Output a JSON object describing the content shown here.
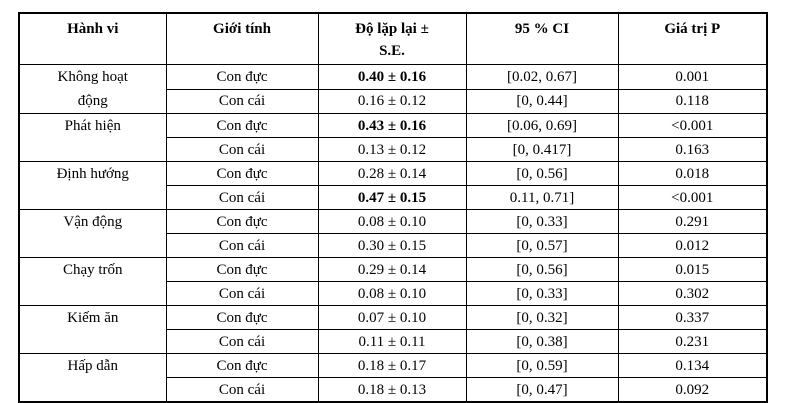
{
  "table": {
    "headers": [
      "Hành vi",
      "Giới tính",
      "Độ lặp lại ± S.E.",
      "95 % CI",
      "Giá trị P"
    ],
    "groups": [
      {
        "behavior": "Không hoạt động",
        "rows": [
          {
            "sex": "Con đực",
            "repeatability": "0.40 ± 0.16",
            "bold": true,
            "ci": "[0.02, 0.67]",
            "p": "0.001"
          },
          {
            "sex": "Con cái",
            "repeatability": "0.16 ± 0.12",
            "bold": false,
            "ci": "[0, 0.44]",
            "p": "0.118"
          }
        ]
      },
      {
        "behavior": "Phát hiện",
        "rows": [
          {
            "sex": "Con đực",
            "repeatability": "0.43 ± 0.16",
            "bold": true,
            "ci": "[0.06, 0.69]",
            "p": "<0.001"
          },
          {
            "sex": "Con cái",
            "repeatability": "0.13 ± 0.12",
            "bold": false,
            "ci": "[0, 0.417]",
            "p": "0.163"
          }
        ]
      },
      {
        "behavior": "Định hướng",
        "rows": [
          {
            "sex": "Con đực",
            "repeatability": "0.28 ± 0.14",
            "bold": false,
            "ci": "[0, 0.56]",
            "p": "0.018"
          },
          {
            "sex": "Con cái",
            "repeatability": "0.47 ± 0.15",
            "bold": true,
            "ci": "0.11, 0.71]",
            "p": "<0.001"
          }
        ]
      },
      {
        "behavior": "Vận động",
        "rows": [
          {
            "sex": "Con đực",
            "repeatability": "0.08 ± 0.10",
            "bold": false,
            "ci": "[0, 0.33]",
            "p": "0.291"
          },
          {
            "sex": "Con cái",
            "repeatability": "0.30 ± 0.15",
            "bold": false,
            "ci": "[0, 0.57]",
            "p": "0.012"
          }
        ]
      },
      {
        "behavior": "Chạy trốn",
        "rows": [
          {
            "sex": "Con đực",
            "repeatability": "0.29 ± 0.14",
            "bold": false,
            "ci": "[0, 0.56]",
            "p": "0.015"
          },
          {
            "sex": "Con cái",
            "repeatability": "0.08 ± 0.10",
            "bold": false,
            "ci": "[0, 0.33]",
            "p": "0.302"
          }
        ]
      },
      {
        "behavior": "Kiếm ăn",
        "rows": [
          {
            "sex": "Con đực",
            "repeatability": "0.07 ± 0.10",
            "bold": false,
            "ci": "[0, 0.32]",
            "p": "0.337"
          },
          {
            "sex": "Con cái",
            "repeatability": "0.11 ± 0.11",
            "bold": false,
            "ci": "[0, 0.38]",
            "p": "0.231"
          }
        ]
      },
      {
        "behavior": "Hấp dẫn",
        "rows": [
          {
            "sex": "Con đực",
            "repeatability": "0.18 ± 0.17",
            "bold": false,
            "ci": "[0, 0.59]",
            "p": "0.134"
          },
          {
            "sex": "Con cái",
            "repeatability": "0.18 ± 0.13",
            "bold": false,
            "ci": "[0, 0.47]",
            "p": "0.092"
          }
        ]
      }
    ]
  },
  "chart_data": {
    "type": "table",
    "title": "",
    "columns": [
      "Hành vi",
      "Giới tính",
      "Độ lặp lại ± S.E.",
      "95 % CI",
      "Giá trị P"
    ],
    "rows": [
      [
        "Không hoạt động",
        "Con đực",
        "0.40 ± 0.16",
        "[0.02, 0.67]",
        "0.001"
      ],
      [
        "Không hoạt động",
        "Con cái",
        "0.16 ± 0.12",
        "[0, 0.44]",
        "0.118"
      ],
      [
        "Phát hiện",
        "Con đực",
        "0.43 ± 0.16",
        "[0.06, 0.69]",
        "<0.001"
      ],
      [
        "Phát hiện",
        "Con cái",
        "0.13 ± 0.12",
        "[0, 0.417]",
        "0.163"
      ],
      [
        "Định hướng",
        "Con đực",
        "0.28 ± 0.14",
        "[0, 0.56]",
        "0.018"
      ],
      [
        "Định hướng",
        "Con cái",
        "0.47 ± 0.15",
        "0.11, 0.71]",
        "<0.001"
      ],
      [
        "Vận động",
        "Con đực",
        "0.08 ± 0.10",
        "[0, 0.33]",
        "0.291"
      ],
      [
        "Vận động",
        "Con cái",
        "0.30 ± 0.15",
        "[0, 0.57]",
        "0.012"
      ],
      [
        "Chạy trốn",
        "Con đực",
        "0.29 ± 0.14",
        "[0, 0.56]",
        "0.015"
      ],
      [
        "Chạy trốn",
        "Con cái",
        "0.08 ± 0.10",
        "[0, 0.33]",
        "0.302"
      ],
      [
        "Kiếm ăn",
        "Con đực",
        "0.07 ± 0.10",
        "[0, 0.32]",
        "0.337"
      ],
      [
        "Kiếm ăn",
        "Con cái",
        "0.11 ± 0.11",
        "[0, 0.38]",
        "0.231"
      ],
      [
        "Hấp dẫn",
        "Con đực",
        "0.18 ± 0.17",
        "[0, 0.59]",
        "0.134"
      ],
      [
        "Hấp dẫn",
        "Con cái",
        "0.18 ± 0.13",
        "[0, 0.47]",
        "0.092"
      ]
    ]
  }
}
